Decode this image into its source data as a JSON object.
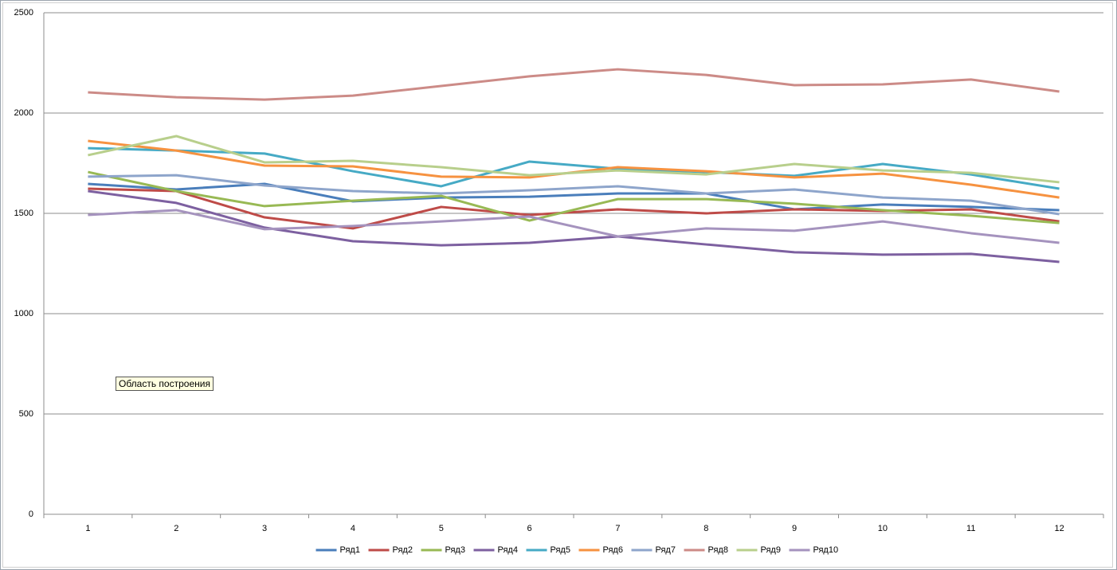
{
  "chart_data": {
    "type": "line",
    "categories": [
      "1",
      "2",
      "3",
      "4",
      "5",
      "6",
      "7",
      "8",
      "9",
      "10",
      "11",
      "12"
    ],
    "series": [
      {
        "name": "Ряд1",
        "color": "#4a7ebb",
        "values": [
          1647,
          1619,
          1647,
          1560,
          1579,
          1583,
          1599,
          1599,
          1520,
          1544,
          1532,
          1516
        ]
      },
      {
        "name": "Ряд2",
        "color": "#be4b48",
        "values": [
          1623,
          1611,
          1480,
          1425,
          1532,
          1492,
          1520,
          1500,
          1520,
          1512,
          1520,
          1460
        ]
      },
      {
        "name": "Ряд3",
        "color": "#98b954",
        "values": [
          1706,
          1611,
          1536,
          1563,
          1587,
          1464,
          1571,
          1571,
          1548,
          1516,
          1488,
          1452
        ]
      },
      {
        "name": "Ряд4",
        "color": "#7d60a0",
        "values": [
          1611,
          1552,
          1429,
          1361,
          1341,
          1353,
          1385,
          1345,
          1306,
          1294,
          1298,
          1258
        ]
      },
      {
        "name": "Ряд5",
        "color": "#46aac5",
        "values": [
          1825,
          1813,
          1798,
          1710,
          1635,
          1758,
          1722,
          1706,
          1687,
          1746,
          1694,
          1623
        ]
      },
      {
        "name": "Ряд6",
        "color": "#f69240",
        "values": [
          1861,
          1813,
          1738,
          1734,
          1683,
          1679,
          1730,
          1710,
          1679,
          1698,
          1643,
          1579
        ]
      },
      {
        "name": "Ряд7",
        "color": "#8ea5cb",
        "values": [
          1683,
          1690,
          1639,
          1611,
          1599,
          1615,
          1635,
          1599,
          1619,
          1579,
          1563,
          1496
        ]
      },
      {
        "name": "Ряд8",
        "color": "#cc8b87",
        "values": [
          2103,
          2079,
          2067,
          2087,
          2135,
          2183,
          2218,
          2190,
          2139,
          2143,
          2167,
          2107
        ]
      },
      {
        "name": "Ряд9",
        "color": "#b8cf8c",
        "values": [
          1790,
          1885,
          1754,
          1762,
          1730,
          1690,
          1714,
          1694,
          1746,
          1714,
          1702,
          1655
        ]
      },
      {
        "name": "Ряд10",
        "color": "#a593be",
        "values": [
          1492,
          1516,
          1421,
          1437,
          1460,
          1484,
          1385,
          1425,
          1413,
          1460,
          1401,
          1353
        ]
      }
    ],
    "ylim": [
      0,
      2500
    ],
    "yticks": [
      0,
      500,
      1000,
      1500,
      2000,
      2500
    ],
    "grid": true,
    "legend": "bottom",
    "annotation": "Область построения"
  }
}
